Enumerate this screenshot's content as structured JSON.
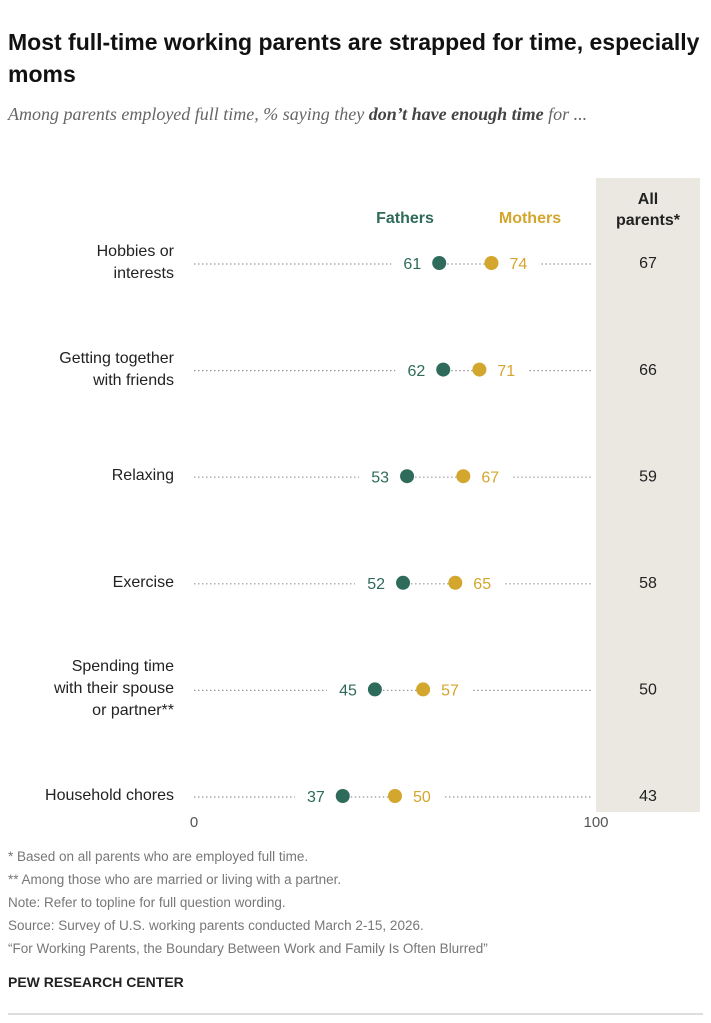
{
  "chart_data": {
    "type": "dot",
    "title": "Most full-time working parents are strapped for time, especially moms",
    "subtitle": {
      "before": "Among parents employed full time, % saying they ",
      "emphasis": "don’t have enough time",
      "after": " for ..."
    },
    "categories": [
      "Hobbies or\ninterests",
      "Getting together\nwith friends",
      "Relaxing",
      "Exercise",
      "Spending time\nwith their spouse\nor partner**",
      "Household chores"
    ],
    "series": [
      {
        "name": "Fathers",
        "color": "#2f6b5b",
        "values": [
          61,
          62,
          53,
          52,
          45,
          37
        ]
      },
      {
        "name": "Mothers",
        "color": "#d3a62e",
        "values": [
          74,
          71,
          67,
          65,
          57,
          50
        ]
      }
    ],
    "all_parents": {
      "label": "All\nparents*",
      "values": [
        67,
        66,
        59,
        58,
        50,
        43
      ]
    },
    "xlim": [
      0,
      100
    ],
    "xticks": [
      0,
      100
    ],
    "notes": [
      "* Based on all parents who are employed full time.",
      "** Among those who are married or living with a partner.",
      "Note: Refer to topline for full question wording.",
      "Source: Survey of U.S. working parents conducted March 2-15, 2026.",
      "“For Working Parents, the Boundary Between Work and Family Is Often Blurred”"
    ],
    "brand": "PEW RESEARCH CENTER"
  }
}
